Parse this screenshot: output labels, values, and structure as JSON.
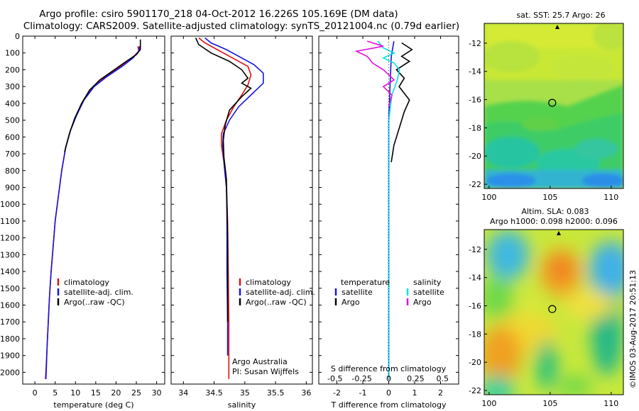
{
  "header": {
    "line1": "Argo profile: csiro 5901170_218 04-Oct-2012 16.226S 105.169E (DM data)",
    "line2": "Climatology: CARS2009. Satellite-adjusted climatology: synTS_20121004.nc (0.79d earlier)"
  },
  "colors": {
    "climatology": "#e01010",
    "satellite": "#1515e0",
    "argo": "#000000",
    "sat_salinity": "#00e0e0",
    "argo_salinity": "#e010e0"
  },
  "side_label": "©IMOS 03-Aug-2017 20:51:13",
  "chart_data": [
    {
      "type": "line",
      "id": "temperature",
      "xlabel": "temperature (deg C)",
      "ylabel": "",
      "xlim": [
        -3,
        32
      ],
      "ylim": [
        2070,
        0
      ],
      "xticks": [
        0,
        5,
        10,
        15,
        20,
        25,
        30
      ],
      "yticks": [
        0,
        100,
        200,
        300,
        400,
        500,
        600,
        700,
        800,
        900,
        1000,
        1100,
        1200,
        1300,
        1400,
        1500,
        1600,
        1700,
        1800,
        1900,
        2000
      ],
      "legend": [
        "climatology",
        "satellite-adj. clim.",
        "Argo(..raw -QC)"
      ],
      "series": [
        {
          "name": "climatology",
          "color": "#e01010",
          "points": [
            [
              25.4,
              60
            ],
            [
              25.6,
              90
            ],
            [
              24,
              130
            ],
            [
              21,
              180
            ],
            [
              17.5,
              240
            ],
            [
              14.5,
              300
            ],
            [
              12,
              380
            ],
            [
              10.2,
              470
            ],
            [
              8.8,
              560
            ],
            [
              7.6,
              660
            ],
            [
              6.6,
              800
            ],
            [
              5.8,
              950
            ],
            [
              5,
              1100
            ],
            [
              4.5,
              1250
            ],
            [
              4,
              1400
            ],
            [
              3.6,
              1550
            ],
            [
              3.3,
              1700
            ],
            [
              3,
              1850
            ],
            [
              2.7,
              2000
            ],
            [
              2.6,
              2040
            ]
          ]
        },
        {
          "name": "satellite-adj. clim.",
          "color": "#1515e0",
          "points": [
            [
              25.8,
              60
            ],
            [
              25.6,
              90
            ],
            [
              24.2,
              130
            ],
            [
              21.5,
              180
            ],
            [
              17.8,
              240
            ],
            [
              14.6,
              300
            ],
            [
              12.1,
              380
            ],
            [
              10.3,
              470
            ],
            [
              8.8,
              560
            ],
            [
              7.6,
              660
            ],
            [
              6.6,
              800
            ],
            [
              5.8,
              950
            ],
            [
              5,
              1100
            ],
            [
              4.5,
              1250
            ],
            [
              4,
              1400
            ],
            [
              3.6,
              1550
            ],
            [
              3.3,
              1700
            ],
            [
              3,
              1850
            ],
            [
              2.8,
              2000
            ],
            [
              2.7,
              2040
            ]
          ]
        },
        {
          "name": "Argo(..raw -QC)",
          "color": "#000000",
          "points": [
            [
              26,
              20
            ],
            [
              26,
              80
            ],
            [
              25,
              110
            ],
            [
              22.5,
              150
            ],
            [
              19,
              210
            ],
            [
              16,
              260
            ],
            [
              13.5,
              320
            ],
            [
              11.5,
              400
            ],
            [
              9.8,
              490
            ],
            [
              8.5,
              580
            ],
            [
              7.3,
              690
            ]
          ]
        }
      ]
    },
    {
      "type": "line",
      "id": "salinity",
      "xlabel": "salinity",
      "xlim": [
        33.8,
        36.1
      ],
      "ylim": [
        2070,
        0
      ],
      "xticks": [
        34,
        34.5,
        35,
        35.5,
        36
      ],
      "legend": [
        "climatology",
        "satellite-adj. clim.",
        "Argo(..raw -QC)"
      ],
      "annotation": [
        "Argo Australia",
        "PI: Susan Wijffels"
      ],
      "series": [
        {
          "name": "climatology",
          "color": "#e01010",
          "points": [
            [
              34.25,
              10
            ],
            [
              34.35,
              40
            ],
            [
              34.55,
              80
            ],
            [
              34.8,
              130
            ],
            [
              35.05,
              180
            ],
            [
              35.1,
              230
            ],
            [
              35.05,
              290
            ],
            [
              34.95,
              350
            ],
            [
              34.82,
              420
            ],
            [
              34.7,
              500
            ],
            [
              34.62,
              580
            ],
            [
              34.62,
              650
            ],
            [
              34.66,
              750
            ],
            [
              34.7,
              900
            ],
            [
              34.72,
              1100
            ],
            [
              34.73,
              1400
            ],
            [
              34.74,
              1700
            ],
            [
              34.74,
              2040
            ]
          ]
        },
        {
          "name": "satellite-adj. clim.",
          "color": "#1515e0",
          "points": [
            [
              34.35,
              10
            ],
            [
              34.45,
              40
            ],
            [
              34.7,
              80
            ],
            [
              34.95,
              130
            ],
            [
              35.15,
              170
            ],
            [
              35.3,
              220
            ],
            [
              35.3,
              280
            ],
            [
              35.1,
              350
            ],
            [
              34.9,
              420
            ],
            [
              34.75,
              500
            ],
            [
              34.65,
              580
            ],
            [
              34.64,
              650
            ],
            [
              34.66,
              750
            ],
            [
              34.7,
              900
            ],
            [
              34.71,
              1100
            ],
            [
              34.71,
              1400
            ],
            [
              34.72,
              1700
            ],
            [
              34.72,
              1900
            ]
          ]
        },
        {
          "name": "Argo(..raw -QC)",
          "color": "#000000",
          "points": [
            [
              34.2,
              10
            ],
            [
              34.25,
              50
            ],
            [
              34.45,
              100
            ],
            [
              34.75,
              150
            ],
            [
              34.95,
              200
            ],
            [
              35.05,
              250
            ],
            [
              34.95,
              280
            ],
            [
              35.1,
              310
            ],
            [
              34.95,
              360
            ],
            [
              34.75,
              440
            ],
            [
              34.68,
              530
            ],
            [
              34.65,
              620
            ],
            [
              34.66,
              720
            ],
            [
              34.7,
              850
            ],
            [
              34.71,
              1000
            ],
            [
              34.72,
              1200
            ],
            [
              34.72,
              1500
            ],
            [
              34.72,
              1700
            ]
          ]
        }
      ]
    },
    {
      "type": "line",
      "id": "difference",
      "xlabel": "T difference from climatology",
      "xlabel_top": "S difference from climatology",
      "xlim": [
        -2.7,
        2.7
      ],
      "s_xlim": [
        -0.65,
        0.65
      ],
      "ylim": [
        2070,
        0
      ],
      "xticks": [
        -2,
        -1,
        0,
        1,
        2
      ],
      "top_ticks": [
        -0.5,
        -0.25,
        0,
        0.25,
        0.5
      ],
      "legend_temperature": [
        "temperature",
        "satellite",
        "Argo"
      ],
      "legend_salinity": [
        "salinity",
        "satellite",
        "Argo"
      ],
      "series": [
        {
          "name": "T satellite",
          "kind": "T",
          "color": "#1515e0",
          "points": [
            [
              0.2,
              30
            ],
            [
              0.1,
              120
            ],
            [
              0.05,
              300
            ],
            [
              0,
              500
            ],
            [
              0,
              900
            ],
            [
              0,
              1500
            ],
            [
              0,
              2040
            ]
          ]
        },
        {
          "name": "T Argo",
          "kind": "T",
          "color": "#000000",
          "points": [
            [
              0.5,
              40
            ],
            [
              0.9,
              80
            ],
            [
              0.5,
              120
            ],
            [
              0.8,
              150
            ],
            [
              0.3,
              200
            ],
            [
              0.6,
              250
            ],
            [
              0.4,
              300
            ],
            [
              0.8,
              380
            ],
            [
              0.6,
              450
            ],
            [
              0.4,
              550
            ],
            [
              0.2,
              650
            ],
            [
              0.1,
              750
            ]
          ]
        },
        {
          "name": "S satellite",
          "kind": "S",
          "color": "#00e0e0",
          "points": [
            [
              -0.1,
              30
            ],
            [
              -0.05,
              70
            ],
            [
              0.05,
              100
            ],
            [
              -0.05,
              130
            ],
            [
              0.05,
              160
            ],
            [
              0.1,
              200
            ],
            [
              0.08,
              260
            ],
            [
              0.03,
              350
            ],
            [
              0,
              500
            ],
            [
              0,
              900
            ],
            [
              0,
              1500
            ],
            [
              0,
              2040
            ]
          ]
        },
        {
          "name": "S Argo",
          "kind": "S",
          "color": "#e010e0",
          "points": [
            [
              -0.2,
              30
            ],
            [
              -0.05,
              60
            ],
            [
              -0.3,
              90
            ],
            [
              -0.2,
              120
            ],
            [
              -0.15,
              160
            ],
            [
              -0.05,
              200
            ],
            [
              0.05,
              260
            ],
            [
              -0.05,
              300
            ],
            [
              0.03,
              350
            ],
            [
              0,
              420
            ]
          ]
        }
      ]
    }
  ],
  "maps": [
    {
      "id": "sst",
      "title": "sat. SST: 25.7 Argo: 26",
      "title2": "",
      "xlim": [
        99.6,
        111
      ],
      "ylim": [
        -22.3,
        -10.6
      ],
      "xticks": [
        100,
        105,
        110
      ],
      "yticks": [
        -12,
        -14,
        -16,
        -18,
        -20,
        -22
      ],
      "marker": [
        105.17,
        -16.23
      ]
    },
    {
      "id": "sla",
      "title": "Altim. SLA: 0.083",
      "title2": "Argo h1000: 0.098 h2000: 0.096",
      "xlim": [
        99.6,
        111
      ],
      "ylim": [
        -22.3,
        -10.6
      ],
      "xticks": [
        100,
        105,
        110
      ],
      "yticks": [
        -12,
        -14,
        -16,
        -18,
        -20,
        -22
      ],
      "marker": [
        105.17,
        -16.23
      ]
    }
  ]
}
